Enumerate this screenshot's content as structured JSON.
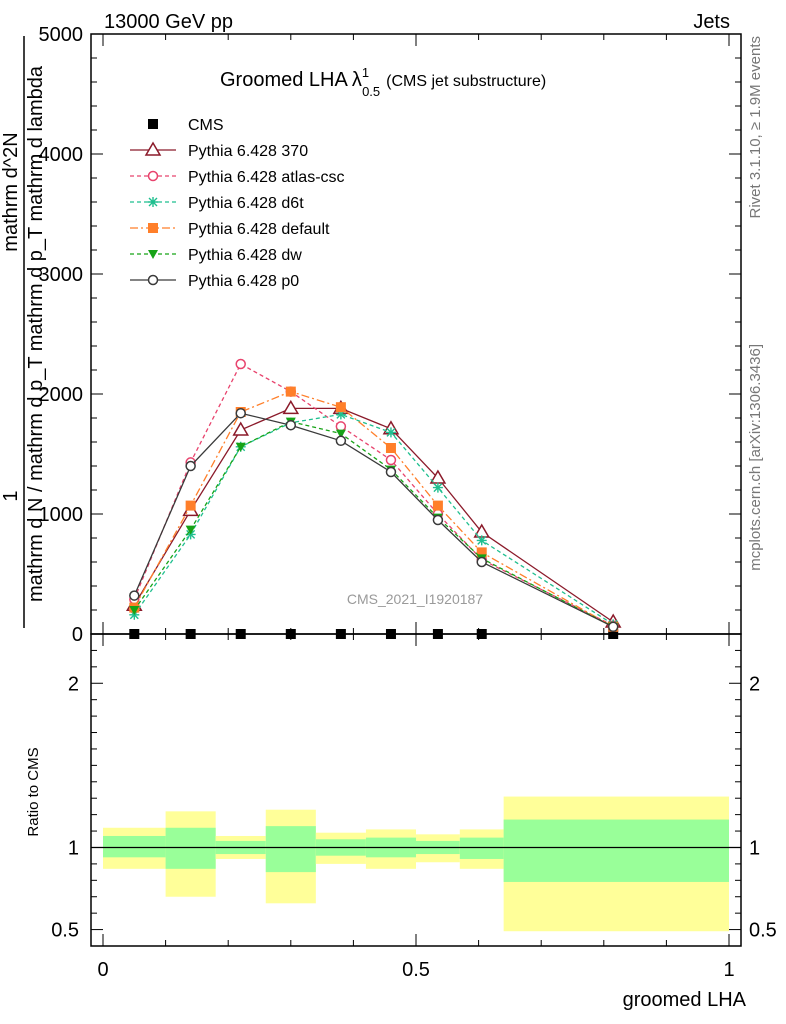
{
  "header": {
    "energy_label": "13000 GeV pp",
    "process_label": "Jets",
    "rivet_label": "Rivet 3.1.10, ≥ 1.9M events",
    "mcplots_label": "mcplots.cern.ch [arXiv:1306.3436]"
  },
  "chart_data": [
    {
      "type": "line",
      "title_main": "Groomed LHA",
      "title_symbol": "λ",
      "title_sup": "1",
      "title_sub": "0.5",
      "title_suffix": "(CMS jet substructure)",
      "analysis_label": "CMS_2021_I1920187",
      "ylabel_numerator": "1",
      "ylabel_denominator": "mathrm d N / mathrm d p_T mathrm d p_T mathrm d lambda",
      "ylabel_top": "mathrm d^2N",
      "ylim": [
        0,
        5000
      ],
      "xlim": [
        0,
        1
      ],
      "y_ticks": [
        "0",
        "1000",
        "2000",
        "3000",
        "4000",
        "5000"
      ],
      "x": [
        0.05,
        0.14,
        0.22,
        0.3,
        0.38,
        0.46,
        0.535,
        0.605,
        0.815
      ],
      "series": [
        {
          "name": "CMS",
          "color": "#000000",
          "marker": "square",
          "dash": "none",
          "values": [
            0,
            0,
            0,
            0,
            0,
            0,
            0,
            0,
            0
          ]
        },
        {
          "name": "Pythia 6.428 370",
          "color": "#8b1a2a",
          "marker": "triangle-open",
          "dash": "solid",
          "values": [
            240,
            1030,
            1700,
            1880,
            1880,
            1710,
            1300,
            850,
            100
          ]
        },
        {
          "name": "Pythia 6.428 atlas-csc",
          "color": "#e8436d",
          "marker": "circle-open",
          "dash": "4,3",
          "values": [
            290,
            1430,
            2250,
            2020,
            1730,
            1450,
            1000,
            620,
            70
          ]
        },
        {
          "name": "Pythia 6.428 d6t",
          "color": "#1fbf8f",
          "marker": "star",
          "dash": "4,3",
          "values": [
            160,
            830,
            1560,
            1760,
            1830,
            1680,
            1220,
            780,
            80
          ]
        },
        {
          "name": "Pythia 6.428 default",
          "color": "#ff7f2a",
          "marker": "square",
          "dash": "8,3,2,3",
          "values": [
            220,
            1070,
            1850,
            2020,
            1890,
            1550,
            1070,
            680,
            60
          ]
        },
        {
          "name": "Pythia 6.428 dw",
          "color": "#16a316",
          "marker": "triangle-down",
          "dash": "4,3",
          "values": [
            200,
            870,
            1560,
            1770,
            1670,
            1370,
            970,
            630,
            60
          ]
        },
        {
          "name": "Pythia 6.428 p0",
          "color": "#3a3a3a",
          "marker": "circle-open",
          "dash": "solid",
          "values": [
            320,
            1400,
            1840,
            1740,
            1610,
            1350,
            950,
            600,
            60
          ]
        }
      ]
    },
    {
      "type": "area",
      "ylabel": "Ratio to CMS",
      "xlabel": "groomed LHA",
      "ylim": [
        0.4,
        2.3
      ],
      "xlim": [
        0,
        1
      ],
      "x_ticks": [
        "0",
        "0.5",
        "1"
      ],
      "y_ticks": [
        "0.5",
        "1",
        "2"
      ],
      "bands": [
        {
          "xlo": 0.0,
          "xhi": 0.1,
          "stat_lo": 0.94,
          "stat_hi": 1.07,
          "tot_lo": 0.87,
          "tot_hi": 1.12
        },
        {
          "xlo": 0.1,
          "xhi": 0.18,
          "stat_lo": 0.87,
          "stat_hi": 1.12,
          "tot_lo": 0.7,
          "tot_hi": 1.22
        },
        {
          "xlo": 0.18,
          "xhi": 0.26,
          "stat_lo": 0.96,
          "stat_hi": 1.04,
          "tot_lo": 0.93,
          "tot_hi": 1.07
        },
        {
          "xlo": 0.26,
          "xhi": 0.34,
          "stat_lo": 0.85,
          "stat_hi": 1.13,
          "tot_lo": 0.66,
          "tot_hi": 1.23
        },
        {
          "xlo": 0.34,
          "xhi": 0.42,
          "stat_lo": 0.95,
          "stat_hi": 1.05,
          "tot_lo": 0.9,
          "tot_hi": 1.09
        },
        {
          "xlo": 0.42,
          "xhi": 0.5,
          "stat_lo": 0.94,
          "stat_hi": 1.06,
          "tot_lo": 0.87,
          "tot_hi": 1.11
        },
        {
          "xlo": 0.5,
          "xhi": 0.57,
          "stat_lo": 0.96,
          "stat_hi": 1.04,
          "tot_lo": 0.91,
          "tot_hi": 1.08
        },
        {
          "xlo": 0.57,
          "xhi": 0.64,
          "stat_lo": 0.93,
          "stat_hi": 1.06,
          "tot_lo": 0.87,
          "tot_hi": 1.11
        },
        {
          "xlo": 0.64,
          "xhi": 1.0,
          "stat_lo": 0.79,
          "stat_hi": 1.17,
          "tot_lo": 0.49,
          "tot_hi": 1.31
        }
      ],
      "reference_line": 1.0,
      "band_colors": {
        "stat": "#99ff99",
        "total": "#ffff99"
      }
    }
  ]
}
